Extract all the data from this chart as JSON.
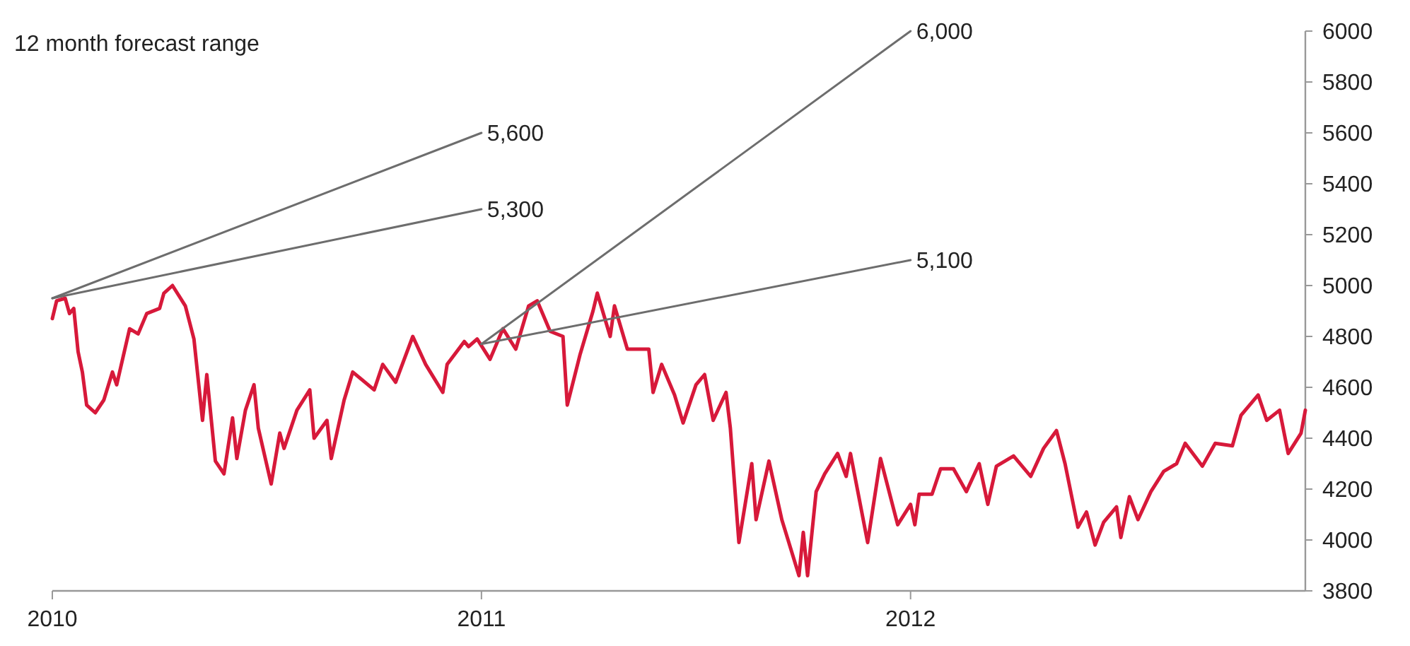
{
  "chart_data": {
    "type": "line",
    "title": "12 month forecast range",
    "xlim": [
      2010,
      2012.92
    ],
    "xticks": [
      2010,
      2011,
      2012
    ],
    "ylim": [
      3800,
      6000
    ],
    "yticks": [
      3800,
      4000,
      4200,
      4400,
      4600,
      4800,
      5000,
      5200,
      5400,
      5600,
      5800,
      6000
    ],
    "grid": false,
    "marker": "none",
    "series": [
      {
        "color": "#d7193a",
        "x": [
          2010.0,
          2010.01,
          2010.03,
          2010.04,
          2010.05,
          2010.06,
          2010.07,
          2010.08,
          2010.1,
          2010.12,
          2010.14,
          2010.15,
          2010.18,
          2010.2,
          2010.22,
          2010.25,
          2010.26,
          2010.28,
          2010.31,
          2010.33,
          2010.35,
          2010.36,
          2010.38,
          2010.4,
          2010.42,
          2010.43,
          2010.45,
          2010.47,
          2010.48,
          2010.51,
          2010.53,
          2010.54,
          2010.57,
          2010.6,
          2010.61,
          2010.64,
          2010.65,
          2010.68,
          2010.7,
          2010.75,
          2010.77,
          2010.8,
          2010.84,
          2010.87,
          2010.91,
          2010.92,
          2010.96,
          2010.97,
          2010.99,
          2011.02,
          2011.05,
          2011.08,
          2011.11,
          2011.13,
          2011.16,
          2011.19,
          2011.2,
          2011.23,
          2011.26,
          2011.27,
          2011.3,
          2011.31,
          2011.34,
          2011.39,
          2011.4,
          2011.42,
          2011.45,
          2011.47,
          2011.5,
          2011.52,
          2011.54,
          2011.57,
          2011.58,
          2011.6,
          2011.63,
          2011.64,
          2011.67,
          2011.7,
          2011.74,
          2011.75,
          2011.76,
          2011.78,
          2011.8,
          2011.83,
          2011.85,
          2011.86,
          2011.9,
          2011.93,
          2011.97,
          2012.0,
          2012.01,
          2012.02,
          2012.05,
          2012.07,
          2012.1,
          2012.13,
          2012.16,
          2012.18,
          2012.2,
          2012.24,
          2012.28,
          2012.31,
          2012.34,
          2012.36,
          2012.39,
          2012.41,
          2012.43,
          2012.45,
          2012.48,
          2012.49,
          2012.51,
          2012.53,
          2012.56,
          2012.59,
          2012.62,
          2012.64,
          2012.68,
          2012.71,
          2012.75,
          2012.77,
          2012.81,
          2012.83,
          2012.86,
          2012.88,
          2012.91,
          2012.92
        ],
        "values": [
          4870,
          4940,
          4950,
          4890,
          4910,
          4740,
          4660,
          4530,
          4500,
          4550,
          4660,
          4610,
          4830,
          4810,
          4890,
          4910,
          4970,
          5000,
          4920,
          4790,
          4470,
          4650,
          4310,
          4260,
          4480,
          4320,
          4510,
          4610,
          4440,
          4220,
          4420,
          4360,
          4510,
          4590,
          4400,
          4470,
          4320,
          4550,
          4660,
          4590,
          4690,
          4620,
          4800,
          4690,
          4580,
          4690,
          4780,
          4760,
          4790,
          4710,
          4830,
          4750,
          4920,
          4940,
          4820,
          4800,
          4530,
          4730,
          4900,
          4970,
          4800,
          4920,
          4750,
          4750,
          4580,
          4690,
          4570,
          4460,
          4610,
          4650,
          4470,
          4580,
          4440,
          3990,
          4300,
          4080,
          4310,
          4080,
          3860,
          4030,
          3860,
          4190,
          4260,
          4340,
          4250,
          4340,
          3990,
          4320,
          4060,
          4140,
          4060,
          4180,
          4180,
          4280,
          4280,
          4190,
          4300,
          4140,
          4290,
          4330,
          4250,
          4360,
          4430,
          4300,
          4050,
          4110,
          3980,
          4070,
          4130,
          4010,
          4170,
          4080,
          4190,
          4270,
          4300,
          4380,
          4290,
          4380,
          4370,
          4490,
          4570,
          4470,
          4510,
          4340,
          4420,
          4510
        ]
      },
      {
        "color": "#6d6d6d",
        "x": [
          2010,
          2011
        ],
        "values": [
          4950,
          5600
        ],
        "value_labels": [
          null,
          "5,600"
        ]
      },
      {
        "color": "#6d6d6d",
        "x": [
          2010,
          2011
        ],
        "values": [
          4950,
          5300
        ],
        "value_labels": [
          null,
          "5,300"
        ]
      },
      {
        "color": "#6d6d6d",
        "x": [
          2011,
          2012
        ],
        "values": [
          4770,
          6000
        ],
        "value_labels": [
          null,
          "6,000"
        ]
      },
      {
        "color": "#6d6d6d",
        "x": [
          2011,
          2012
        ],
        "values": [
          4770,
          5100
        ],
        "value_labels": [
          null,
          "5,100"
        ]
      }
    ]
  }
}
